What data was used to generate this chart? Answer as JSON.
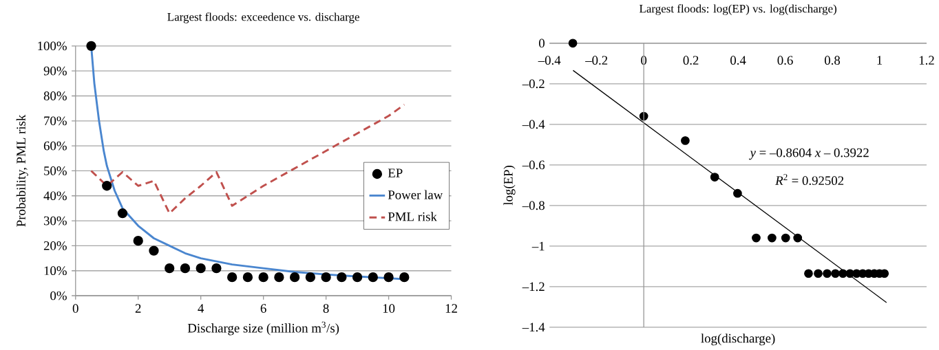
{
  "chart_data": [
    {
      "type": "line",
      "title": "Largest floods: exceedence vs. discharge",
      "xlabel": "Discharge size (million m$^{3}$/s)",
      "ylabel": "Probability, PML risk",
      "xlim": [
        0,
        12
      ],
      "xticks": [
        0,
        2,
        4,
        6,
        8,
        10,
        12
      ],
      "ylim": [
        0,
        100
      ],
      "yticks": [
        {
          "value": 0,
          "label": "0%"
        },
        {
          "value": 10,
          "label": "10%"
        },
        {
          "value": 20,
          "label": "20%"
        },
        {
          "value": 30,
          "label": "30%"
        },
        {
          "value": 40,
          "label": "40%"
        },
        {
          "value": 50,
          "label": "50%"
        },
        {
          "value": 60,
          "label": "60%"
        },
        {
          "value": 70,
          "label": "70%"
        },
        {
          "value": 80,
          "label": "80%"
        },
        {
          "value": 90,
          "label": "90%"
        },
        {
          "value": 100,
          "label": "100%"
        }
      ],
      "grid": "y",
      "legend": "right",
      "series": [
        {
          "name": "EP",
          "type": "scatter",
          "marker": "circle",
          "color": "#000000",
          "x": [
            0.5,
            1,
            1.5,
            2,
            2.5,
            3,
            3.5,
            4,
            4.5,
            5,
            5.5,
            6,
            6.5,
            7,
            7.5,
            8,
            8.5,
            9,
            9.5,
            10,
            10.5
          ],
          "values": [
            100,
            44,
            33,
            22,
            18,
            11,
            11,
            11,
            11,
            7.4,
            7.4,
            7.4,
            7.4,
            7.4,
            7.4,
            7.4,
            7.4,
            7.4,
            7.4,
            7.4,
            7.4
          ]
        },
        {
          "name": "Power law",
          "type": "line",
          "color": "#4a86cf",
          "line_style": "solid",
          "x": [
            0.5,
            0.6,
            0.75,
            0.9,
            1,
            1.25,
            1.5,
            2,
            2.5,
            3,
            3.5,
            4,
            5,
            6,
            7,
            8,
            9,
            10,
            10.5
          ],
          "values": [
            100,
            85,
            70,
            58,
            52,
            42,
            35,
            28,
            23,
            20,
            17,
            15,
            12.5,
            11,
            9.5,
            8.5,
            7.7,
            7,
            6.6
          ]
        },
        {
          "name": "PML risk",
          "type": "line",
          "color": "#c0504d",
          "line_style": "dashed",
          "x": [
            0.5,
            1,
            1.5,
            2,
            2.5,
            3,
            3.5,
            4,
            4.5,
            5,
            5.5,
            6,
            7,
            8,
            9,
            10,
            10.5
          ],
          "values": [
            50,
            44,
            49.5,
            44,
            46,
            33,
            39,
            44,
            49.5,
            36,
            40,
            44,
            51,
            58,
            65,
            72,
            76.5
          ]
        }
      ]
    },
    {
      "type": "scatter",
      "title": "Largest floods: log(EP) vs. log(discharge)",
      "xlabel": "log(discharge)",
      "ylabel": "log(EP)",
      "xlim": [
        -0.4,
        1.2
      ],
      "xticks": [
        {
          "value": -0.4,
          "label": "–0.4"
        },
        {
          "value": -0.2,
          "label": "–0.2"
        },
        0,
        0.2,
        0.4,
        0.6,
        0.8,
        1,
        1.2
      ],
      "ylim": [
        -1.4,
        0
      ],
      "yticks": [
        {
          "value": -1.4,
          "label": "–1.4"
        },
        {
          "value": -1.2,
          "label": "–1.2"
        },
        {
          "value": -1,
          "label": "–1"
        },
        {
          "value": -0.8,
          "label": "–0.8"
        },
        {
          "value": -0.6,
          "label": "–0.6"
        },
        {
          "value": -0.4,
          "label": "–0.4"
        },
        {
          "value": -0.2,
          "label": "–0.2"
        },
        0
      ],
      "grid": "y",
      "legend": false,
      "annotations": [
        "*y* = –0.8604 *x* – 0.3922",
        "*R*$^{2}$ = 0.92502"
      ],
      "series": [
        {
          "type": "scatter",
          "marker": "circle",
          "color": "#000000",
          "x": [
            -0.301,
            0,
            0.176,
            0.301,
            0.398,
            0.477,
            0.544,
            0.602,
            0.653,
            0.699,
            0.74,
            0.778,
            0.813,
            0.845,
            0.875,
            0.903,
            0.929,
            0.954,
            0.978,
            1.0,
            1.021
          ],
          "values": [
            0,
            -0.36,
            -0.48,
            -0.66,
            -0.74,
            -0.96,
            -0.96,
            -0.96,
            -0.96,
            -1.135,
            -1.135,
            -1.135,
            -1.135,
            -1.135,
            -1.135,
            -1.135,
            -1.135,
            -1.135,
            -1.135,
            -1.135,
            -1.135
          ]
        },
        {
          "type": "line",
          "color": "#000000",
          "line_style": "solid",
          "x": [
            -0.3,
            1.03
          ],
          "values": [
            -0.134,
            -1.278
          ]
        }
      ]
    }
  ]
}
